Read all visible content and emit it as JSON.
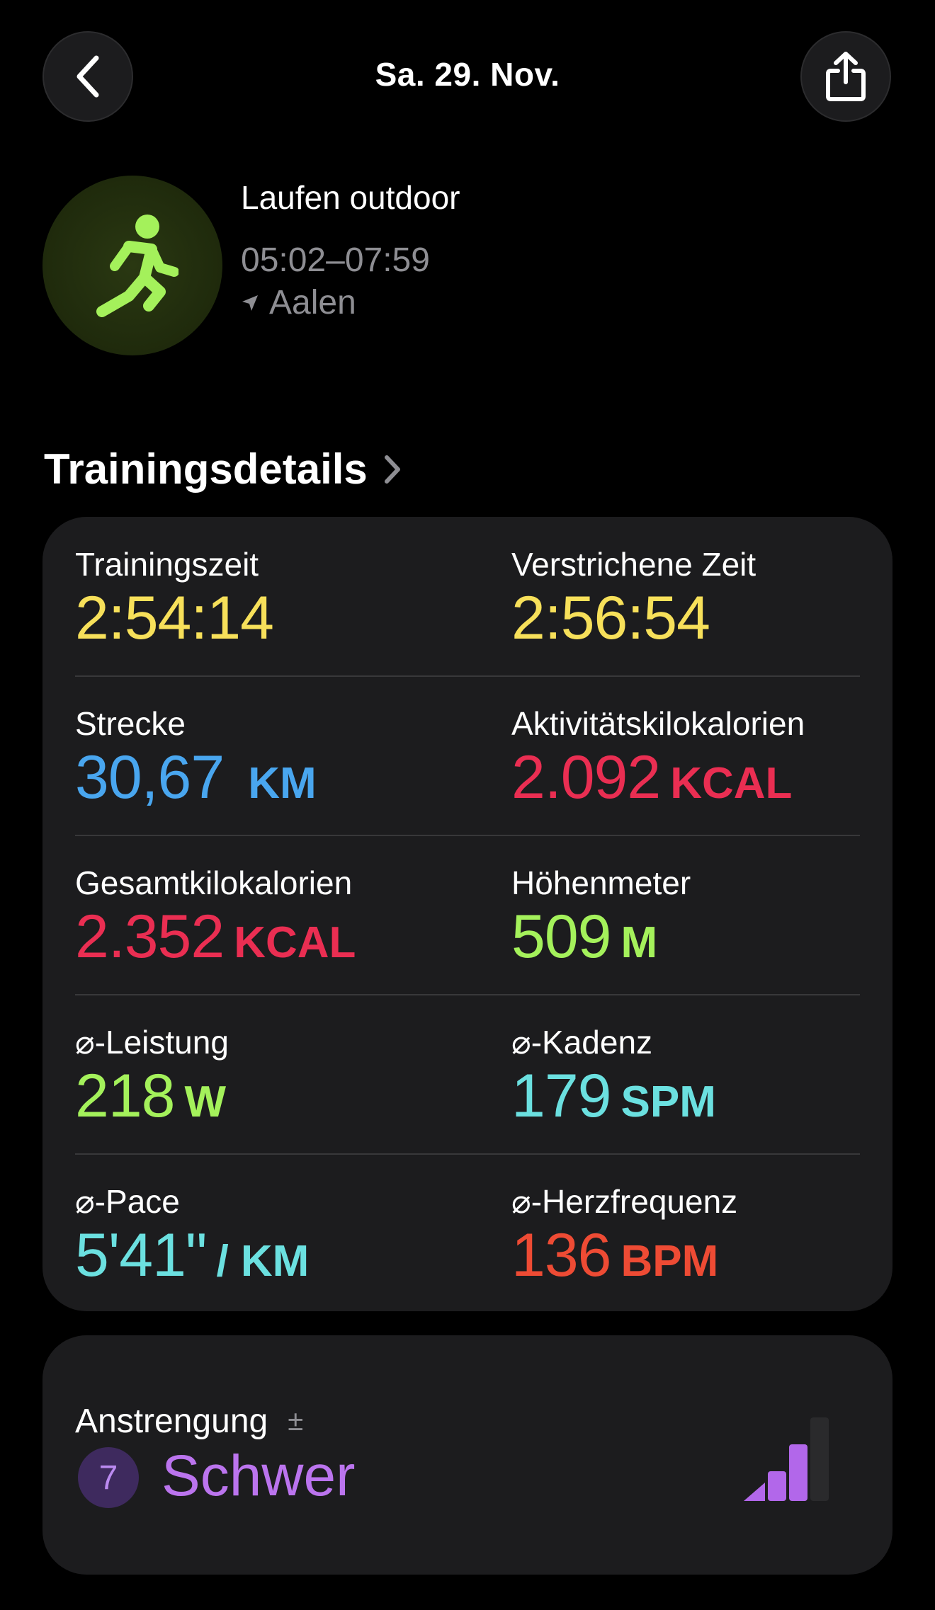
{
  "header": {
    "title": "Sa. 29. Nov."
  },
  "workout": {
    "name": "Laufen outdoor",
    "time_range": "05:02–07:59",
    "location": "Aalen",
    "icon": "running-figure-icon",
    "accent_color": "#a4f15b"
  },
  "details": {
    "heading": "Trainingsdetails",
    "metrics": [
      {
        "label": "Trainingszeit",
        "value": "2:54:14",
        "unit": "",
        "color": "#f7e05a"
      },
      {
        "label": "Verstrichene Zeit",
        "value": "2:56:54",
        "unit": "",
        "color": "#f7e05a"
      },
      {
        "label": "Strecke",
        "value": "30,67",
        "unit": "KM",
        "color": "#49a6ef"
      },
      {
        "label": "Aktivitätskilokalorien",
        "value": "2.092",
        "unit": "KCAL",
        "color": "#ea2e52"
      },
      {
        "label": "Gesamtkilokalorien",
        "value": "2.352",
        "unit": "KCAL",
        "color": "#ea2e52"
      },
      {
        "label": "Höhenmeter",
        "value": "509",
        "unit": "M",
        "color": "#a4f15b"
      },
      {
        "label": "⌀-Leistung",
        "value": "218",
        "unit": "W",
        "color": "#a4f15b"
      },
      {
        "label": "⌀-Kadenz",
        "value": "179",
        "unit": "SPM",
        "color": "#6be0e0"
      },
      {
        "label": "⌀-Pace",
        "value": "5'41\"",
        "unit": "/ KM",
        "color": "#6be0e0"
      },
      {
        "label": "⌀-Herzfrequenz",
        "value": "136",
        "unit": "BPM",
        "color": "#ee4b34"
      }
    ]
  },
  "effort": {
    "label": "Anstrengung",
    "adjust_symbol": "±",
    "score": "7",
    "level": "Schwer",
    "bars_filled": 3,
    "bars_total": 4,
    "color": "#bb74ee"
  }
}
